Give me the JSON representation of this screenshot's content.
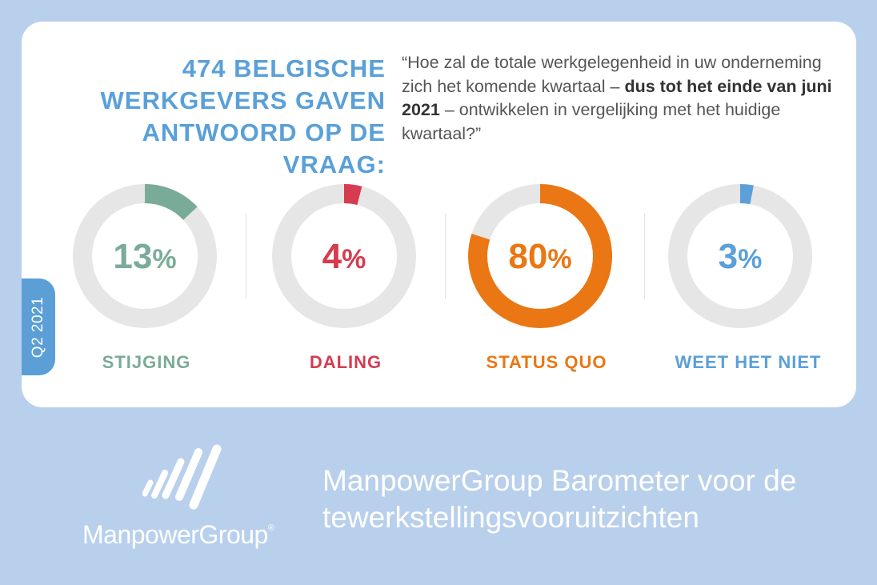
{
  "header": {
    "headline_lines": [
      "474 BELGISCHE",
      "WERKGEVERS GAVEN",
      "ANTWOORD OP DE VRAAG:"
    ],
    "question_part1": "“Hoe zal de totale werkgelegenheid in uw onderneming zich het komende kwartaal – ",
    "question_bold": "dus tot het einde van juni 2021",
    "question_part2": " – ontwikkelen in vergelijking met het huidige kwartaal?”"
  },
  "period_tab": "Q2 2021",
  "colors": {
    "track": "#e6e6e6",
    "stijging": "#7aab98",
    "daling": "#d63b4f",
    "status_quo": "#ea7713",
    "weet_het_niet": "#5ba0d8",
    "background": "#b9d0ec",
    "headline": "#5aa0d8"
  },
  "chart_data": {
    "type": "pie",
    "variant": "donut",
    "unit": "%",
    "categories": [
      "STIJGING",
      "DALING",
      "STATUS QUO",
      "WEET HET NIET"
    ],
    "values": [
      13,
      4,
      80,
      3
    ]
  },
  "donut_labels": {
    "values": [
      "13",
      "4",
      "80",
      "3"
    ],
    "unit": "%"
  },
  "footer": {
    "brand": "ManpowerGroup",
    "registered_mark": "®",
    "title": "ManpowerGroup Barometer voor de tewerkstellingsvooruitzichten"
  }
}
